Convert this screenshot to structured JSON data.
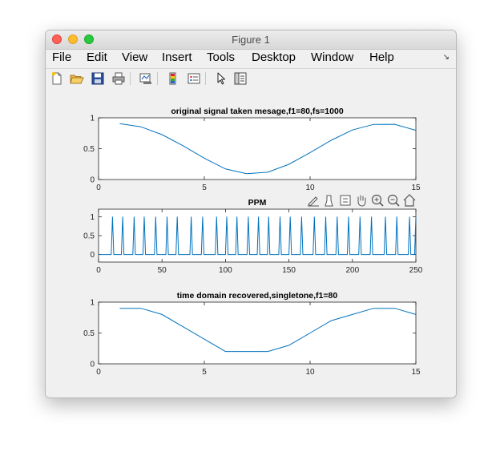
{
  "window": {
    "title": "Figure 1"
  },
  "menu": {
    "items": [
      "File",
      "Edit",
      "View",
      "Insert",
      "Tools",
      "Desktop",
      "Window",
      "Help"
    ]
  },
  "toolbar": {
    "buttons": [
      "new-figure-icon",
      "open-file-icon",
      "save-icon",
      "print-icon",
      "link-plot-icon",
      "insert-colorbar-icon",
      "insert-legend-icon",
      "edit-plot-arrow-icon",
      "property-inspector-icon"
    ]
  },
  "axes_toolbar": {
    "buttons": [
      "brush-edit-icon",
      "data-brush-icon",
      "data-tips-icon",
      "pan-hand-icon",
      "zoom-in-icon",
      "zoom-out-icon",
      "home-restore-icon"
    ]
  },
  "chart_data": [
    {
      "type": "line",
      "title": "original signal taken mesage,f1=80,fs=1000",
      "xlabel": "",
      "ylabel": "",
      "xlim": [
        0,
        15
      ],
      "ylim": [
        0,
        1
      ],
      "xticks": [
        "0",
        "5",
        "10",
        "15"
      ],
      "yticks": [
        "0",
        "0.5",
        "1"
      ],
      "color": "#0072bd",
      "x": [
        1,
        2,
        3,
        4,
        5,
        6,
        7,
        8,
        9,
        10,
        11,
        12,
        13,
        14,
        15
      ],
      "y": [
        0.905,
        0.854,
        0.727,
        0.547,
        0.345,
        0.172,
        0.095,
        0.118,
        0.247,
        0.437,
        0.636,
        0.803,
        0.893,
        0.895,
        0.797
      ]
    },
    {
      "type": "line",
      "title": "PPM",
      "xlabel": "",
      "ylabel": "",
      "xlim": [
        0,
        250
      ],
      "ylim": [
        -0.2,
        1.2
      ],
      "xticks": [
        "0",
        "50",
        "100",
        "150",
        "200",
        "250"
      ],
      "yticks": [
        "0",
        "0.5",
        "1"
      ],
      "color": "#0072bd",
      "pulse_positions": [
        11,
        19,
        28,
        36,
        45,
        54,
        62,
        73,
        82,
        93,
        101,
        109,
        118,
        126,
        134,
        143,
        151,
        160,
        170,
        179,
        188,
        197,
        206,
        215,
        226,
        235,
        245,
        250
      ]
    },
    {
      "type": "line",
      "title": "time domain recovered,singletone,f1=80",
      "xlabel": "",
      "ylabel": "",
      "xlim": [
        0,
        15
      ],
      "ylim": [
        0,
        1
      ],
      "xticks": [
        "0",
        "5",
        "10",
        "15"
      ],
      "yticks": [
        "0",
        "0.5",
        "1"
      ],
      "color": "#0072bd",
      "x": [
        1,
        2,
        3,
        4,
        5,
        6,
        7,
        8,
        9,
        10,
        11,
        12,
        13,
        14,
        15
      ],
      "y": [
        0.9,
        0.9,
        0.8,
        0.6,
        0.4,
        0.2,
        0.2,
        0.2,
        0.3,
        0.5,
        0.7,
        0.8,
        0.9,
        0.9,
        0.8
      ]
    }
  ]
}
